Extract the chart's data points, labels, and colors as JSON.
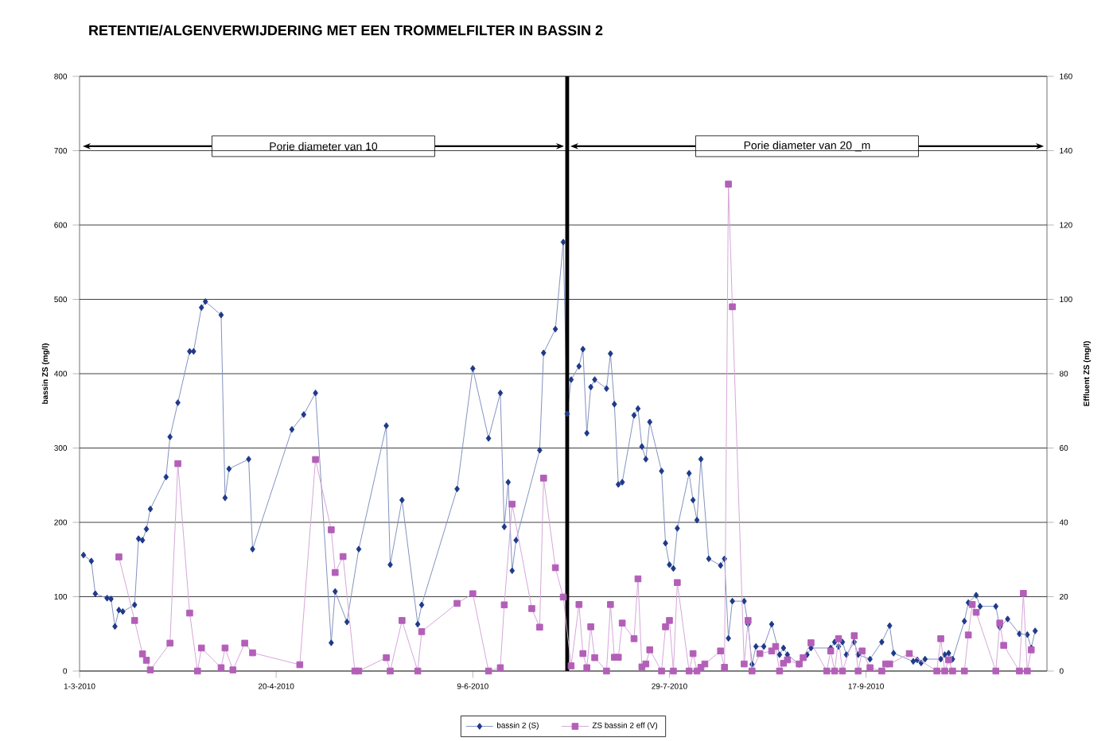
{
  "chart_data": {
    "type": "line",
    "title": "RETENTIE/ALGENVERWIJDERING MET EEN TROMMELFILTER IN BASSIN 2",
    "ylabel": "bassin ZS (mg/l)",
    "y2label": "Effluent ZS (mg/l)",
    "xlim": [
      "2010-03-01",
      "2010-11-02"
    ],
    "xticks": [
      {
        "value": "2010-03-01",
        "label": "1-3-2010"
      },
      {
        "value": "2010-04-20",
        "label": "20-4-2010"
      },
      {
        "value": "2010-06-09",
        "label": "9-6-2010"
      },
      {
        "value": "2010-07-29",
        "label": "29-7-2010"
      },
      {
        "value": "2010-09-17",
        "label": "17-9-2010"
      }
    ],
    "ylim": [
      0,
      800
    ],
    "yticks": [
      0,
      100,
      200,
      300,
      400,
      500,
      600,
      700,
      800
    ],
    "y2lim": [
      0,
      160
    ],
    "y2ticks": [
      0,
      20,
      40,
      60,
      80,
      100,
      120,
      140,
      160
    ],
    "grid": "y",
    "legend": "bottom",
    "ref_lines": [
      {
        "axis": "x",
        "value": "2010-07-03",
        "color": "#000000"
      }
    ],
    "annotations": [
      "Porie diameter van 10",
      "Porie diameter van 20 _m"
    ],
    "series": [
      {
        "name": "bassin 2 (S)",
        "color": "#1f3a8a",
        "marker": "diamond",
        "axis": "y",
        "x": [
          "2010-03-02",
          "2010-03-04",
          "2010-03-05",
          "2010-03-08",
          "2010-03-09",
          "2010-03-10",
          "2010-03-11",
          "2010-03-12",
          "2010-03-15",
          "2010-03-16",
          "2010-03-17",
          "2010-03-18",
          "2010-03-19",
          "2010-03-23",
          "2010-03-24",
          "2010-03-26",
          "2010-03-29",
          "2010-03-30",
          "2010-04-01",
          "2010-04-02",
          "2010-04-06",
          "2010-04-07",
          "2010-04-08",
          "2010-04-13",
          "2010-04-14",
          "2010-04-24",
          "2010-04-27",
          "2010-04-30",
          "2010-05-04",
          "2010-05-05",
          "2010-05-08",
          "2010-05-11",
          "2010-05-18",
          "2010-05-19",
          "2010-05-22",
          "2010-05-26",
          "2010-05-27",
          "2010-06-05",
          "2010-06-09",
          "2010-06-13",
          "2010-06-16",
          "2010-06-17",
          "2010-06-18",
          "2010-06-19",
          "2010-06-20",
          "2010-06-26",
          "2010-06-27",
          "2010-06-30",
          "2010-07-02",
          "2010-07-03",
          "2010-07-04",
          "2010-07-06",
          "2010-07-07",
          "2010-07-08",
          "2010-07-09",
          "2010-07-10",
          "2010-07-13",
          "2010-07-14",
          "2010-07-15",
          "2010-07-16",
          "2010-07-17",
          "2010-07-20",
          "2010-07-21",
          "2010-07-22",
          "2010-07-23",
          "2010-07-24",
          "2010-07-27",
          "2010-07-28",
          "2010-07-29",
          "2010-07-30",
          "2010-07-31",
          "2010-08-03",
          "2010-08-04",
          "2010-08-05",
          "2010-08-06",
          "2010-08-08",
          "2010-08-11",
          "2010-08-12",
          "2010-08-13",
          "2010-08-14",
          "2010-08-17",
          "2010-08-18",
          "2010-08-19",
          "2010-08-20",
          "2010-08-22",
          "2010-08-24",
          "2010-08-26",
          "2010-08-27",
          "2010-08-28",
          "2010-08-31",
          "2010-09-02",
          "2010-09-03",
          "2010-09-08",
          "2010-09-09",
          "2010-09-10",
          "2010-09-11",
          "2010-09-12",
          "2010-09-14",
          "2010-09-15",
          "2010-09-18",
          "2010-09-21",
          "2010-09-23",
          "2010-09-24",
          "2010-09-29",
          "2010-09-30",
          "2010-10-01",
          "2010-10-02",
          "2010-10-06",
          "2010-10-07",
          "2010-10-08",
          "2010-10-09",
          "2010-10-12",
          "2010-10-13",
          "2010-10-15",
          "2010-10-16",
          "2010-10-20",
          "2010-10-21",
          "2010-10-23",
          "2010-10-26",
          "2010-10-28",
          "2010-10-29",
          "2010-10-30"
        ],
        "values": [
          156,
          148,
          104,
          98,
          97,
          60,
          82,
          80,
          89,
          178,
          176,
          191,
          218,
          261,
          315,
          361,
          430,
          430,
          489,
          497,
          479,
          233,
          272,
          285,
          164,
          325,
          345,
          374,
          38,
          107,
          66,
          164,
          330,
          143,
          230,
          63,
          89,
          245,
          407,
          313,
          374,
          194,
          254,
          135,
          176,
          297,
          428,
          460,
          577,
          346,
          392,
          410,
          433,
          320,
          382,
          392,
          380,
          427,
          359,
          251,
          254,
          344,
          353,
          302,
          285,
          335,
          269,
          172,
          143,
          138,
          192,
          266,
          230,
          203,
          285,
          151,
          142,
          151,
          44,
          94,
          94,
          63,
          9,
          33,
          33,
          63,
          22,
          31,
          22,
          9,
          22,
          31,
          31,
          39,
          33,
          39,
          22,
          39,
          22,
          16,
          39,
          61,
          24,
          13,
          15,
          11,
          16,
          16,
          22,
          24,
          16,
          67,
          92,
          102,
          87,
          87,
          59,
          70,
          50,
          49,
          31,
          54
        ]
      },
      {
        "name": "ZS bassin 2 eff (V)",
        "color": "#b35fb8",
        "marker": "square",
        "axis": "y2",
        "x": [
          "2010-03-11",
          "2010-03-15",
          "2010-03-17",
          "2010-03-18",
          "2010-03-19",
          "2010-03-24",
          "2010-03-26",
          "2010-03-29",
          "2010-03-31",
          "2010-04-01",
          "2010-04-06",
          "2010-04-07",
          "2010-04-09",
          "2010-04-12",
          "2010-04-14",
          "2010-04-26",
          "2010-04-30",
          "2010-05-04",
          "2010-05-05",
          "2010-05-07",
          "2010-05-10",
          "2010-05-11",
          "2010-05-18",
          "2010-05-19",
          "2010-05-22",
          "2010-05-26",
          "2010-05-27",
          "2010-06-05",
          "2010-06-09",
          "2010-06-13",
          "2010-06-16",
          "2010-06-17",
          "2010-06-19",
          "2010-06-24",
          "2010-06-26",
          "2010-06-27",
          "2010-06-30",
          "2010-07-02",
          "2010-07-04",
          "2010-07-06",
          "2010-07-07",
          "2010-07-08",
          "2010-07-09",
          "2010-07-10",
          "2010-07-13",
          "2010-07-14",
          "2010-07-15",
          "2010-07-16",
          "2010-07-17",
          "2010-07-20",
          "2010-07-21",
          "2010-07-22",
          "2010-07-23",
          "2010-07-24",
          "2010-07-27",
          "2010-07-28",
          "2010-07-29",
          "2010-07-30",
          "2010-07-31",
          "2010-08-03",
          "2010-08-04",
          "2010-08-05",
          "2010-08-06",
          "2010-08-07",
          "2010-08-11",
          "2010-08-12",
          "2010-08-13",
          "2010-08-14",
          "2010-08-17",
          "2010-08-18",
          "2010-08-19",
          "2010-08-21",
          "2010-08-24",
          "2010-08-25",
          "2010-08-26",
          "2010-08-27",
          "2010-08-28",
          "2010-08-31",
          "2010-09-01",
          "2010-09-03",
          "2010-09-07",
          "2010-09-08",
          "2010-09-09",
          "2010-09-10",
          "2010-09-11",
          "2010-09-14",
          "2010-09-15",
          "2010-09-16",
          "2010-09-18",
          "2010-09-21",
          "2010-09-22",
          "2010-09-23",
          "2010-09-28",
          "2010-10-05",
          "2010-10-06",
          "2010-10-07",
          "2010-10-08",
          "2010-10-09",
          "2010-10-12",
          "2010-10-13",
          "2010-10-14",
          "2010-10-15",
          "2010-10-20",
          "2010-10-21",
          "2010-10-22",
          "2010-10-26",
          "2010-10-27",
          "2010-10-28",
          "2010-10-29"
        ],
        "values": [
          30.7,
          13.6,
          4.6,
          2.9,
          0.3,
          7.5,
          55.8,
          15.6,
          0,
          6.2,
          0.9,
          6.2,
          0.3,
          7.5,
          4.9,
          1.7,
          56.9,
          38,
          26.5,
          30.8,
          0,
          0,
          3.6,
          0,
          13.6,
          0,
          10.6,
          18.2,
          20.8,
          0,
          0.9,
          17.8,
          44.9,
          16.8,
          11.8,
          51.9,
          27.8,
          19.9,
          1.4,
          17.9,
          4.7,
          0.9,
          11.9,
          3.6,
          0,
          17.9,
          3.7,
          3.7,
          12.9,
          8.7,
          24.8,
          1.1,
          1.9,
          5.7,
          0,
          11.9,
          13.6,
          0,
          23.8,
          0,
          4.7,
          0,
          1,
          1.9,
          5.4,
          1,
          131,
          98,
          1.9,
          13.6,
          0,
          4.7,
          5.4,
          6.6,
          0,
          2.1,
          3,
          1.9,
          3.6,
          7.6,
          0,
          5.4,
          0,
          8.7,
          0,
          9.5,
          0,
          5.4,
          0.9,
          0,
          1.9,
          1.9,
          4.7,
          0,
          8.7,
          0,
          3,
          0,
          0,
          9.7,
          17.9,
          15.8,
          0,
          12.9,
          6.9,
          0,
          20.9,
          0,
          5.7
        ]
      }
    ]
  }
}
